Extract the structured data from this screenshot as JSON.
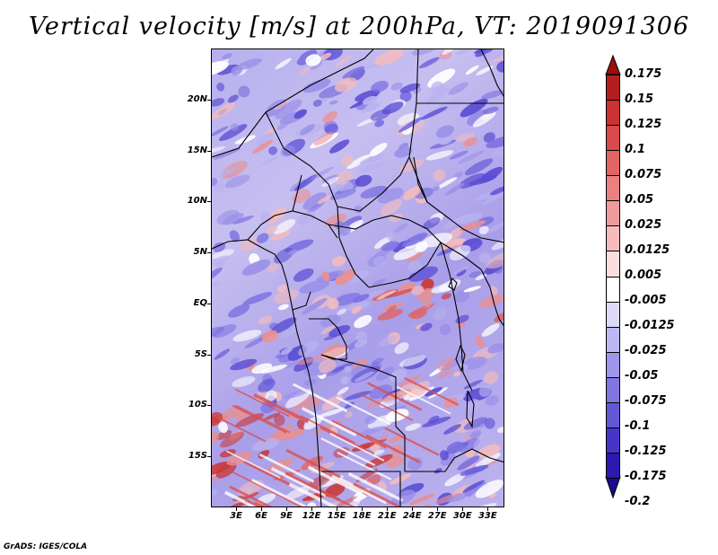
{
  "title": "Vertical velocity [m/s] at 200hPa, VT: 2019091306",
  "footer": "GrADS: IGES/COLA",
  "map": {
    "lat_labels": [
      "20N",
      "15N",
      "10N",
      "5N",
      "EQ",
      "5S",
      "10S",
      "15S"
    ],
    "lat_values": [
      20,
      15,
      10,
      5,
      0,
      -5,
      -10,
      -15
    ],
    "lon_labels": [
      "3E",
      "6E",
      "9E",
      "12E",
      "15E",
      "18E",
      "21E",
      "24E",
      "27E",
      "30E",
      "33E"
    ],
    "lon_values": [
      3,
      6,
      9,
      12,
      15,
      18,
      21,
      24,
      27,
      30,
      33
    ],
    "lon_range": [
      0,
      35
    ],
    "lat_range": [
      -20,
      25
    ]
  },
  "colorbar": {
    "labels": [
      "0.175",
      "0.15",
      "0.125",
      "0.1",
      "0.075",
      "0.05",
      "0.025",
      "0.0125",
      "0.005",
      "-0.005",
      "-0.0125",
      "-0.025",
      "-0.05",
      "-0.075",
      "-0.1",
      "-0.125",
      "-0.175",
      "-0.2"
    ],
    "colors": [
      "#9a1010",
      "#b51e1e",
      "#c93333",
      "#d94a4a",
      "#e36464",
      "#ea8080",
      "#f09b9b",
      "#f6bcbc",
      "#fbdede",
      "#ffffff",
      "#dcdaf8",
      "#bdb8f2",
      "#9e96ea",
      "#8176e0",
      "#6457d6",
      "#4736c6",
      "#2b19b0",
      "#1a0a8c"
    ],
    "over_color": "#9a1010",
    "under_color": "#1a0a8c"
  }
}
